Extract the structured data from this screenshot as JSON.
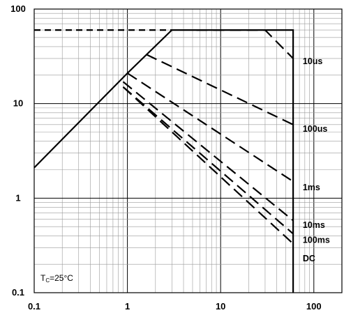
{
  "chart_data": {
    "type": "line",
    "title": "",
    "xlabel": "",
    "ylabel": "",
    "x_scale": "log",
    "y_scale": "log",
    "xlim": [
      0.1,
      200
    ],
    "ylim": [
      0.1,
      100
    ],
    "grid": true,
    "x_ticks": [
      {
        "value": 0.1,
        "label": "0.1"
      },
      {
        "value": 1,
        "label": "1"
      },
      {
        "value": 10,
        "label": "10"
      },
      {
        "value": 100,
        "label": "100"
      }
    ],
    "y_ticks": [
      {
        "value": 100,
        "label": "100"
      },
      {
        "value": 10,
        "label": "10"
      },
      {
        "value": 1,
        "label": "1"
      },
      {
        "value": 0.1,
        "label": "0.1"
      }
    ],
    "annotation": {
      "prefix": "T",
      "sub": "C",
      "suffix": "=25°C"
    },
    "reference_lines": [
      {
        "points": [
          [
            0.1,
            60
          ],
          [
            3,
            60
          ]
        ],
        "style": "dashed"
      }
    ],
    "series": [
      {
        "name": "DC",
        "style": "solid",
        "points": [
          [
            0.1,
            2.1
          ],
          [
            1,
            21
          ],
          [
            3,
            60
          ],
          [
            60,
            60
          ],
          [
            60,
            0.1
          ]
        ]
      },
      {
        "name": "10us",
        "style": "dashed",
        "points": [
          [
            5.5,
            60
          ],
          [
            30,
            60
          ],
          [
            60,
            30
          ]
        ]
      },
      {
        "name": "100us",
        "style": "dashed",
        "points": [
          [
            1.6,
            33
          ],
          [
            60,
            6
          ]
        ]
      },
      {
        "name": "1ms",
        "style": "dashed",
        "points": [
          [
            1,
            21
          ],
          [
            60,
            1.5
          ]
        ]
      },
      {
        "name": "10ms",
        "style": "dashed",
        "points": [
          [
            0.9,
            17
          ],
          [
            60,
            0.58
          ]
        ]
      },
      {
        "name": "100ms",
        "style": "dashed",
        "points": [
          [
            0.9,
            15
          ],
          [
            60,
            0.42
          ]
        ]
      },
      {
        "name": "DC_dashed",
        "style": "dashed",
        "points": [
          [
            0.9,
            15
          ],
          [
            60,
            0.33
          ]
        ]
      }
    ],
    "labels": [
      {
        "text": "10us",
        "x": 76,
        "y": 28
      },
      {
        "text": "100us",
        "x": 76,
        "y": 5.4
      },
      {
        "text": "1ms",
        "x": 76,
        "y": 1.3
      },
      {
        "text": "10ms",
        "x": 76,
        "y": 0.52
      },
      {
        "text": "100ms",
        "x": 76,
        "y": 0.36
      },
      {
        "text": "DC",
        "x": 76,
        "y": 0.23
      }
    ]
  }
}
